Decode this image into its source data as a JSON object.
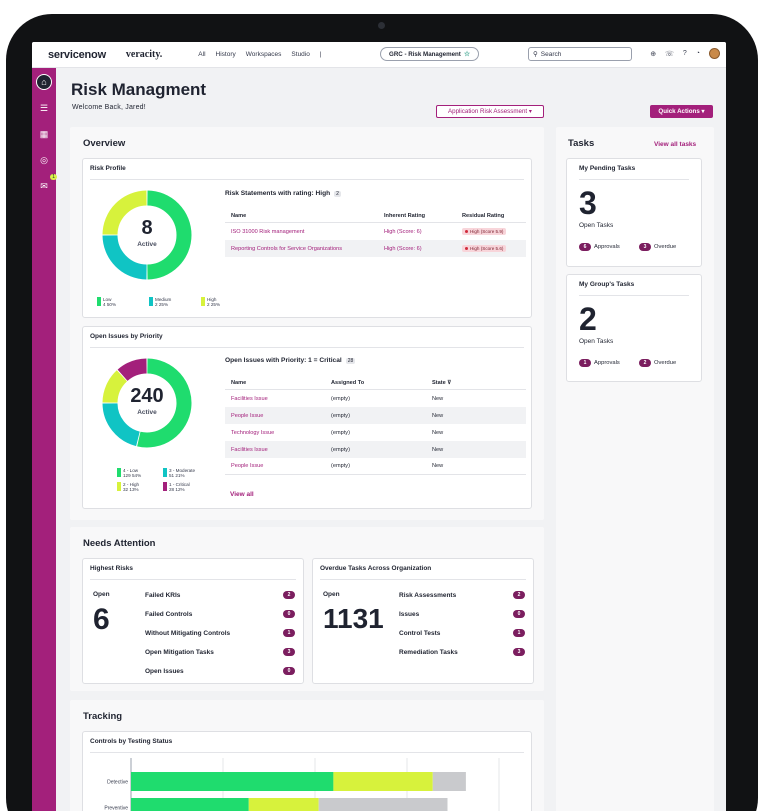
{
  "topbar": {
    "logo": "servicenow",
    "brand": "veracity.",
    "nav": [
      "All",
      "History",
      "Workspaces",
      "Studio",
      "|"
    ],
    "app_pill": "GRC - Risk Management",
    "search_placeholder": "Search"
  },
  "page": {
    "title": "Risk Managment",
    "welcome": "Welcome Back, Jared!",
    "assessment_button": "Application Risk Assessment ▾",
    "quick_actions_button": "Quick Actions ▾"
  },
  "rail": {
    "badge": "1"
  },
  "overview": {
    "title": "Overview",
    "risk_profile": {
      "title": "Risk Profile",
      "center_value": "8",
      "center_label": "Active",
      "legend": [
        {
          "label": "Low",
          "count": "4",
          "pct": "50%",
          "color": "#1fdc6e"
        },
        {
          "label": "Medium",
          "count": "2",
          "pct": "25%",
          "color": "#10c4c4"
        },
        {
          "label": "High",
          "count": "2",
          "pct": "25%",
          "color": "#d7f23c"
        }
      ],
      "table_title": "Risk Statements with rating: High",
      "table_count": "2",
      "columns": [
        "Name",
        "Inherent Rating",
        "Residual Rating"
      ],
      "rows": [
        {
          "name": "ISO 31000 Risk management",
          "inherent": "High (Score: 6)",
          "residual": "High (Score 5.9)"
        },
        {
          "name": "Reporting Controls for Service Organizations",
          "inherent": "High (Score: 6)",
          "residual": "High (Score 5.6)"
        }
      ]
    },
    "open_issues": {
      "title": "Open Issues by Priority",
      "center_value": "240",
      "center_label": "Active",
      "legend": [
        {
          "label": "4 - Low",
          "count": "129",
          "pct": "54%",
          "color": "#1fdc6e"
        },
        {
          "label": "3 - Moderate",
          "count": "51",
          "pct": "21%",
          "color": "#10c4c4"
        },
        {
          "label": "2 - High",
          "count": "32",
          "pct": "13%",
          "color": "#d7f23c"
        },
        {
          "label": "1 - Critical",
          "count": "28",
          "pct": "12%",
          "color": "#a3207b"
        }
      ],
      "table_title": "Open Issues with Priority: 1 = Critical",
      "table_count": "28",
      "columns": [
        "Name",
        "Assigned To",
        "State ⊽"
      ],
      "rows": [
        {
          "name": "Facilities Issue",
          "assigned": "(empty)",
          "state": "New"
        },
        {
          "name": "People Issue",
          "assigned": "(empty)",
          "state": "New"
        },
        {
          "name": "Technology Issue",
          "assigned": "(empty)",
          "state": "New"
        },
        {
          "name": "Facilities Issue",
          "assigned": "(empty)",
          "state": "New"
        },
        {
          "name": "People Issue",
          "assigned": "(empty)",
          "state": "New"
        }
      ],
      "view_all": "View all"
    }
  },
  "tasks": {
    "title": "Tasks",
    "view_all": "View all tasks",
    "pending": {
      "title": "My Pending Tasks",
      "count": "3",
      "label": "Open Tasks",
      "approvals": "6",
      "approvals_label": "Approvals",
      "overdue": "3",
      "overdue_label": "Overdue"
    },
    "group": {
      "title": "My Group's Tasks",
      "count": "2",
      "label": "Open Tasks",
      "approvals": "1",
      "approvals_label": "Approvals",
      "overdue": "2",
      "overdue_label": "Overdue"
    }
  },
  "needs_attention": {
    "title": "Needs Attention",
    "highest_risks": {
      "title": "Highest Risks",
      "open_label": "Open",
      "open_value": "6",
      "items": [
        {
          "label": "Failed KRIs",
          "count": "2"
        },
        {
          "label": "Failed Controls",
          "count": "0"
        },
        {
          "label": "Without Mitigating Controls",
          "count": "1"
        },
        {
          "label": "Open Mitigation Tasks",
          "count": "3"
        },
        {
          "label": "Open Issues",
          "count": "0"
        }
      ]
    },
    "overdue": {
      "title": "Overdue Tasks Across Organization",
      "open_label": "Open",
      "open_value": "1131",
      "items": [
        {
          "label": "Risk Assessments",
          "count": "2"
        },
        {
          "label": "Issues",
          "count": "0"
        },
        {
          "label": "Control Tests",
          "count": "1"
        },
        {
          "label": "Remediation Tasks",
          "count": "3"
        }
      ]
    }
  },
  "tracking": {
    "title": "Tracking",
    "card_title": "Controls by Testing Status"
  },
  "chart_data": {
    "type": "bar",
    "orientation": "horizontal",
    "stacked": true,
    "categories": [
      "Detective",
      "Preventive"
    ],
    "series": [
      {
        "values": [
          55,
          32
        ],
        "color": "#1fdc6e"
      },
      {
        "values": [
          27,
          19
        ],
        "color": "#d7f23c"
      },
      {
        "values": [
          9,
          35
        ],
        "color": "#c9cacd"
      }
    ],
    "xlim": [
      0,
      100
    ],
    "grid": true
  }
}
